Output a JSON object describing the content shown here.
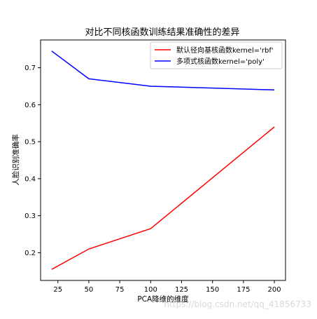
{
  "chart_data": {
    "type": "line",
    "title": "对比不同核函数训练结果准确性的差异",
    "xlabel": "PCA降维的维度",
    "ylabel": "人脸识别准确率",
    "x": [
      20,
      50,
      100,
      200
    ],
    "series": [
      {
        "name": "默认径向基核函数kernel='rbf'",
        "color": "#ff0000",
        "values": [
          0.155,
          0.21,
          0.265,
          0.54
        ]
      },
      {
        "name": "多项式核函数kernel='poly'",
        "color": "#0000ff",
        "values": [
          0.745,
          0.67,
          0.65,
          0.64
        ]
      }
    ],
    "xticks": [
      25,
      50,
      75,
      100,
      125,
      150,
      175,
      200
    ],
    "yticks": [
      0.2,
      0.3,
      0.4,
      0.5,
      0.6,
      0.7
    ],
    "xlim": [
      11,
      209
    ],
    "ylim": [
      0.125,
      0.775
    ],
    "grid": false,
    "legend_position": "upper-right"
  },
  "watermark": "https://blog.csdn.net/qq_41856733"
}
